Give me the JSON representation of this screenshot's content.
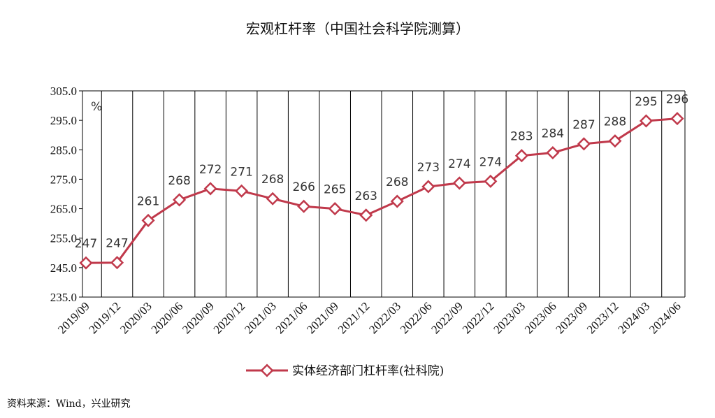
{
  "source": "资料来源：Wind，兴业研究",
  "chart_data": {
    "type": "line",
    "title": "宏观杠杆率（中国社会科学院测算）",
    "unit_label": "%",
    "categories": [
      "2019/09",
      "2019/12",
      "2020/03",
      "2020/06",
      "2020/09",
      "2020/12",
      "2021/03",
      "2021/06",
      "2021/09",
      "2021/12",
      "2022/03",
      "2022/06",
      "2022/09",
      "2022/12",
      "2023/03",
      "2023/06",
      "2023/09",
      "2023/12",
      "2024/03",
      "2024/06"
    ],
    "series": [
      {
        "name": "实体经济部门杠杆率(社科院)",
        "color": "#c0394b",
        "values": [
          246.6,
          246.7,
          261.0,
          268.0,
          271.8,
          271.0,
          268.4,
          265.8,
          265.0,
          262.8,
          267.5,
          272.5,
          273.7,
          274.3,
          283.0,
          284.0,
          287.0,
          288.0,
          294.8,
          295.6
        ],
        "labels": [
          "247",
          "247",
          "261",
          "268",
          "272",
          "271",
          "268",
          "266",
          "265",
          "263",
          "268",
          "273",
          "274",
          "274",
          "283",
          "284",
          "287",
          "288",
          "295",
          "296"
        ]
      }
    ],
    "ylim": [
      235.0,
      305.0
    ],
    "yticks": [
      "235.0",
      "245.0",
      "255.0",
      "265.0",
      "275.0",
      "285.0",
      "295.0",
      "305.0"
    ],
    "grid": "vertical",
    "legend_position": "bottom"
  }
}
